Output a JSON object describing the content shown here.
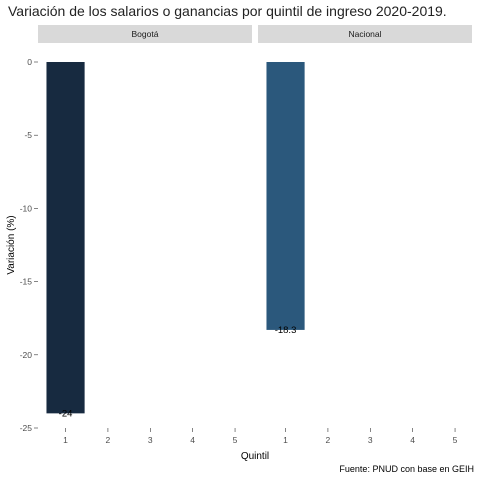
{
  "chart_data": {
    "type": "bar",
    "title": "Variación de los salarios o ganancias por quintil de ingreso 2020-2019.",
    "ylabel": "Variación (%)",
    "xlabel": "Quintil",
    "caption": "Fuente: PNUD con base en GEIH",
    "categories": [
      "1",
      "2",
      "3",
      "4",
      "5"
    ],
    "ylim": [
      -25,
      0
    ],
    "yticks": [
      0,
      -5,
      -10,
      -15,
      -20,
      -25
    ],
    "grid": false,
    "legend": "none",
    "panels": [
      {
        "name": "Bogotá",
        "color": "#172a40",
        "values": [
          -24,
          null,
          null,
          null,
          null
        ],
        "labels": [
          "-24",
          "",
          "",
          "",
          ""
        ]
      },
      {
        "name": "Nacional",
        "color": "#2b587c",
        "values": [
          -18.3,
          null,
          null,
          null,
          null
        ],
        "labels": [
          "-18.3",
          "",
          "",
          "",
          ""
        ]
      }
    ]
  }
}
